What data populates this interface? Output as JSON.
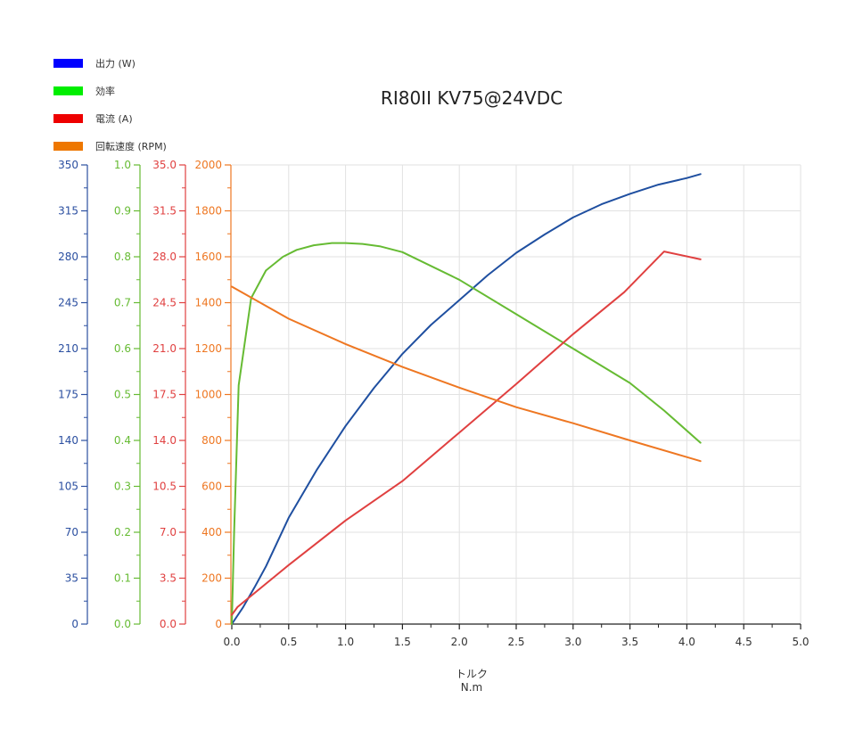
{
  "chart_data": {
    "type": "line",
    "title": "RI80II KV75@24VDC",
    "xlabel": "トルク",
    "xunit": "N.m",
    "xlim": [
      0,
      5
    ],
    "x_ticks": [
      "0.0",
      "0.5",
      "1.0",
      "1.5",
      "2.0",
      "2.5",
      "3.0",
      "3.5",
      "4.0",
      "4.5",
      "5.0"
    ],
    "grid": true,
    "legend_placement": "top-left",
    "series": [
      {
        "name": "出力 (W)",
        "legend_color": "#0000ff",
        "line_color": "#1f4fa0",
        "axis": "power",
        "x": [
          0,
          0.1,
          0.2,
          0.3,
          0.5,
          0.75,
          1.0,
          1.25,
          1.5,
          1.75,
          2.0,
          2.25,
          2.5,
          2.75,
          3.0,
          3.25,
          3.5,
          3.75,
          4.0,
          4.12
        ],
        "y": [
          0,
          13,
          28,
          44,
          81,
          118,
          151,
          180,
          206,
          228,
          247,
          266,
          283,
          297,
          310,
          320,
          328,
          335,
          340,
          343
        ]
      },
      {
        "name": "効率",
        "legend_color": "#00ee00",
        "line_color": "#66bb33",
        "axis": "efficiency",
        "x": [
          0,
          0.02,
          0.06,
          0.17,
          0.3,
          0.45,
          0.57,
          0.72,
          0.88,
          1.0,
          1.15,
          1.3,
          1.5,
          2.0,
          2.5,
          3.0,
          3.5,
          3.8,
          4.12
        ],
        "y": [
          0.0,
          0.2,
          0.52,
          0.71,
          0.77,
          0.8,
          0.815,
          0.825,
          0.83,
          0.83,
          0.828,
          0.823,
          0.81,
          0.75,
          0.675,
          0.6,
          0.525,
          0.465,
          0.395
        ]
      },
      {
        "name": "電流 (A)",
        "legend_color": "#ee0000",
        "line_color": "#e04040",
        "axis": "current",
        "x": [
          0,
          0.05,
          0.5,
          1.0,
          1.5,
          2.0,
          2.5,
          3.0,
          3.45,
          3.8,
          4.12
        ],
        "y": [
          0.7,
          1.3,
          4.5,
          7.9,
          10.9,
          14.6,
          18.3,
          22.1,
          25.3,
          28.4,
          27.8
        ]
      },
      {
        "name": "回転速度 (RPM)",
        "legend_color": "#ee7700",
        "line_color": "#ee7722",
        "axis": "speed",
        "x": [
          0,
          0.5,
          1.0,
          1.5,
          2.0,
          2.5,
          3.0,
          3.5,
          4.12
        ],
        "y": [
          1470,
          1330,
          1220,
          1120,
          1030,
          945,
          875,
          800,
          710
        ]
      }
    ],
    "y_axes": [
      {
        "id": "power",
        "label": "出力 (W)",
        "color": "#2b4fa0",
        "min": 0,
        "max": 350,
        "ticks": [
          "0",
          "35",
          "70",
          "105",
          "140",
          "175",
          "210",
          "245",
          "280",
          "315",
          "350"
        ]
      },
      {
        "id": "efficiency",
        "label": "効率",
        "color": "#66bb33",
        "min": 0,
        "max": 1,
        "ticks": [
          "0.0",
          "0.1",
          "0.2",
          "0.3",
          "0.4",
          "0.5",
          "0.6",
          "0.7",
          "0.8",
          "0.9",
          "1.0"
        ]
      },
      {
        "id": "current",
        "label": "電流 (A)",
        "color": "#e04040",
        "min": 0,
        "max": 35,
        "ticks": [
          "0.0",
          "3.5",
          "7.0",
          "10.5",
          "14.0",
          "17.5",
          "21.0",
          "24.5",
          "28.0",
          "31.5",
          "35.0"
        ]
      },
      {
        "id": "speed",
        "label": "回転速度 (RPM)",
        "color": "#ee7722",
        "min": 0,
        "max": 2000,
        "ticks": [
          "0",
          "200",
          "400",
          "600",
          "800",
          "1000",
          "1200",
          "1400",
          "1600",
          "1800",
          "2000"
        ]
      }
    ]
  }
}
